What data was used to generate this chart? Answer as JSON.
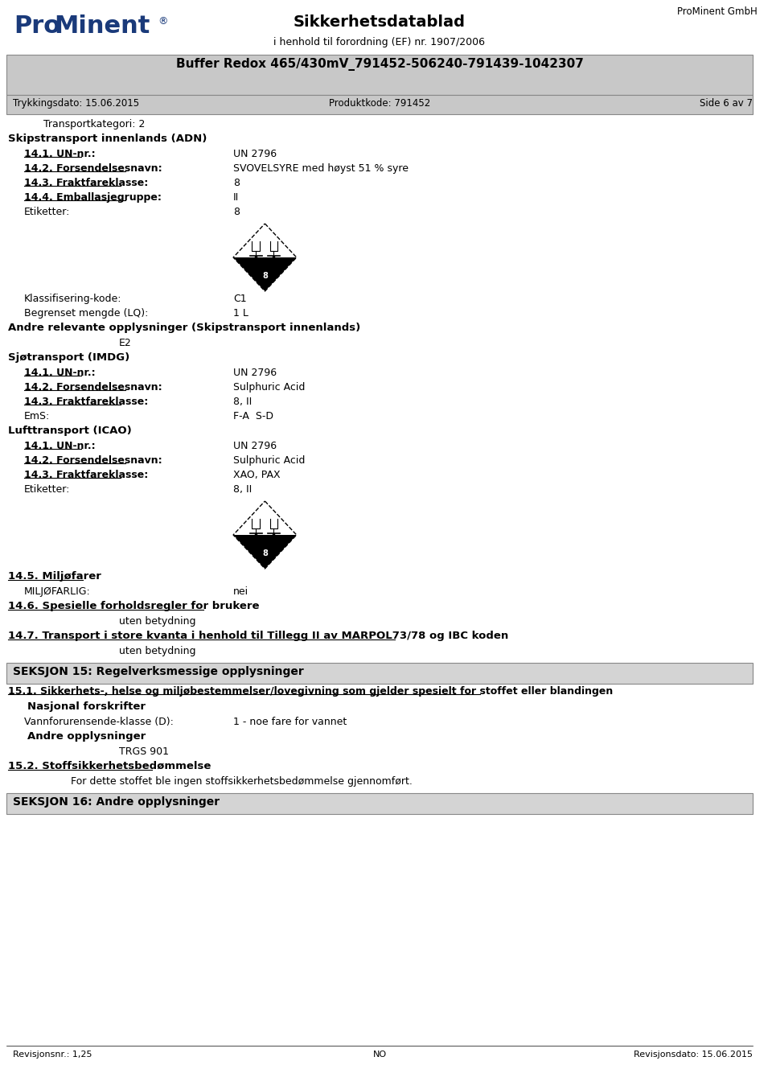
{
  "company": "ProMinent GmbH",
  "title_main": "Sikkerhetsdatablad",
  "subtitle": "i henhold til forordning (EF) nr. 1907/2006",
  "doc_title": "Buffer Redox 465/430mV_791452-506240-791439-1042307",
  "print_date": "Trykkingsdato: 15.06.2015",
  "product_code": "Produktkode: 791452",
  "page": "Side 6 av 7",
  "header_bg": "#c8c8c8",
  "section_bg": "#d4d4d4",
  "footer_revision": "Revisjonsnr.: 1,25",
  "footer_country": "NO",
  "footer_date": "Revisjonsdato: 15.06.2015",
  "logo_pro_color": "#1a3a7a",
  "logo_o_color": "#e07820",
  "logo_minent_color": "#1a3a7a",
  "content": [
    {
      "type": "indent1",
      "text": "Transportkategori: 2"
    },
    {
      "type": "bold",
      "text": "Skipstransport innenlands (ADN)"
    },
    {
      "type": "field_ul",
      "label": "14.1. UN-nr.:",
      "value": "UN 2796"
    },
    {
      "type": "field_ul",
      "label": "14.2. Forsendelsesnavn:",
      "value": "SVOVELSYRE med høyst 51 % syre"
    },
    {
      "type": "field_ul",
      "label": "14.3. Fraktfareklasse:",
      "value": "8"
    },
    {
      "type": "field_ul",
      "label": "14.4. Emballasjegruppe:",
      "value": "II"
    },
    {
      "type": "field_plain",
      "label": "Etiketter:",
      "value": "8"
    },
    {
      "type": "diamond_symbol"
    },
    {
      "type": "field_plain",
      "label": "Klassifisering-kode:",
      "value": "C1"
    },
    {
      "type": "field_plain",
      "label": "Begrenset mengde (LQ):",
      "value": "1 L"
    },
    {
      "type": "bold",
      "text": "Andre relevante opplysninger (Skipstransport innenlands)"
    },
    {
      "type": "indent2",
      "text": "E2"
    },
    {
      "type": "bold",
      "text": "Sjøtransport (IMDG)"
    },
    {
      "type": "field_ul",
      "label": "14.1. UN-nr.:",
      "value": "UN 2796"
    },
    {
      "type": "field_ul",
      "label": "14.2. Forsendelsesnavn:",
      "value": "Sulphuric Acid"
    },
    {
      "type": "field_ul",
      "label": "14.3. Fraktfareklasse:",
      "value": "8, II"
    },
    {
      "type": "field_plain",
      "label": "EmS:",
      "value": "F-A  S-D"
    },
    {
      "type": "bold",
      "text": "Lufttransport (ICAO)"
    },
    {
      "type": "field_ul",
      "label": "14.1. UN-nr.:",
      "value": "UN 2796"
    },
    {
      "type": "field_ul",
      "label": "14.2. Forsendelsesnavn:",
      "value": "Sulphuric Acid"
    },
    {
      "type": "field_ul",
      "label": "14.3. Fraktfareklasse:",
      "value": "XAO, PAX"
    },
    {
      "type": "field_plain",
      "label": "Etiketter:",
      "value": "8, II"
    },
    {
      "type": "diamond_symbol"
    },
    {
      "type": "field_ul14",
      "label": "14.5. Miljøfarer"
    },
    {
      "type": "field_plain",
      "label": "MILJØFARLIG:",
      "value": "nei"
    },
    {
      "type": "field_ul14",
      "label": "14.6. Spesielle forholdsregler for brukere"
    },
    {
      "type": "indent2",
      "text": "uten betydning"
    },
    {
      "type": "field_ul14_long",
      "label": "14.7. Transport i store kvanta i henhold til Tillegg II av MARPOL73/78 og IBC koden"
    },
    {
      "type": "indent2",
      "text": "uten betydning"
    },
    {
      "type": "section_header",
      "text": "SEKSJON 15: Regelverksmessige opplysninger"
    },
    {
      "type": "bold_ul",
      "text": "15.1. Sikkerhets-, helse og miljøbestemmelser/lovegivning som gjelder spesielt for stoffet eller blandingen"
    },
    {
      "type": "indent1_bold",
      "text": "Nasjonal forskrifter"
    },
    {
      "type": "field_plain",
      "label": "Vannforurensende-klasse (D):",
      "value": "1 - noe fare for vannet"
    },
    {
      "type": "indent1_bold",
      "text": "Andre opplysninger"
    },
    {
      "type": "indent2",
      "text": "TRGS 901"
    },
    {
      "type": "field_ul14",
      "label": "15.2. Stoffsikkerhetsbedømmelse"
    },
    {
      "type": "indent2_long",
      "text": "For dette stoffet ble ingen stoffsikkerhetsbedømmelse gjennomført."
    },
    {
      "type": "section_header",
      "text": "SEKSJON 16: Andre opplysninger"
    }
  ]
}
